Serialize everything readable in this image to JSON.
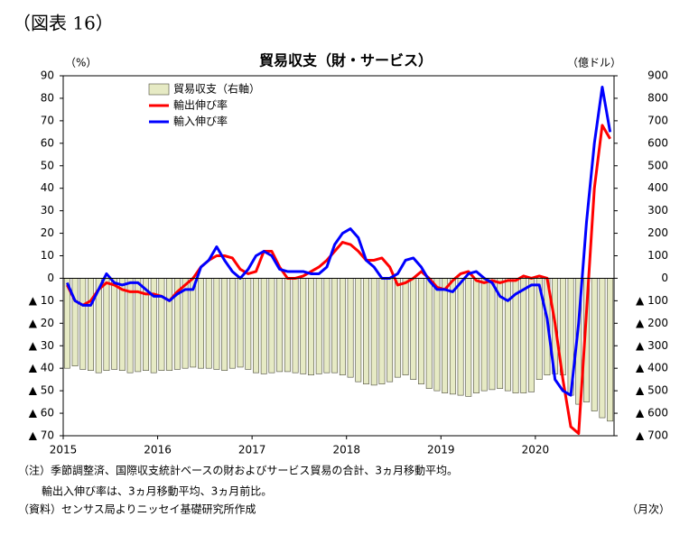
{
  "chart_data": {
    "type": "combo",
    "figure_label": "（図表 16）",
    "title": "貿易収支（財・サービス）",
    "y_unit": "（%）",
    "y2_unit": "（億ドル）",
    "x_unit": "（月次）",
    "notes": [
      "（注）季節調整済、国際収支統計ベースの財およびサービス貿易の合計、3ヵ月移動平均。",
      "輸出入伸び率は、3ヵ月移動平均、3ヵ月前比。",
      "（資料）センサス局よりニッセイ基礎研究所作成"
    ],
    "categories": [
      "2015",
      null,
      null,
      null,
      null,
      null,
      null,
      null,
      null,
      null,
      null,
      null,
      "2016",
      null,
      null,
      null,
      null,
      null,
      null,
      null,
      null,
      null,
      null,
      null,
      "2017",
      null,
      null,
      null,
      null,
      null,
      null,
      null,
      null,
      null,
      null,
      null,
      "2018",
      null,
      null,
      null,
      null,
      null,
      null,
      null,
      null,
      null,
      null,
      null,
      "2019",
      null,
      null,
      null,
      null,
      null,
      null,
      null,
      null,
      null,
      null,
      null,
      "2020",
      null,
      null,
      null,
      null,
      null,
      null,
      null,
      null,
      null
    ],
    "series": [
      {
        "name": "貿易収支（右軸）",
        "type": "bar",
        "axis": "y2",
        "color": "#e6eac4",
        "edge": "#4a4a3a",
        "values": [
          -400,
          -390,
          -405,
          -410,
          -420,
          -410,
          -405,
          -410,
          -420,
          -415,
          -410,
          -420,
          -410,
          -410,
          -405,
          -400,
          -395,
          -400,
          -400,
          -405,
          -410,
          -400,
          -395,
          -405,
          -420,
          -425,
          -420,
          -415,
          -415,
          -420,
          -425,
          -430,
          -425,
          -420,
          -420,
          -430,
          -440,
          -460,
          -470,
          -475,
          -470,
          -460,
          -440,
          -430,
          -450,
          -470,
          -490,
          -500,
          -510,
          -515,
          -520,
          -525,
          -510,
          -500,
          -495,
          -490,
          -500,
          -510,
          -510,
          -505,
          -450,
          -430,
          -425,
          -430,
          -520,
          -560,
          -550,
          -590,
          -620,
          -635
        ]
      },
      {
        "name": "輸出伸び率",
        "type": "line",
        "axis": "y",
        "color": "#ff0000",
        "values": [
          -3,
          -10,
          -12,
          -10,
          -5,
          -2,
          -3,
          -5,
          -6,
          -6,
          -7,
          -7,
          -8,
          -10,
          -6,
          -3,
          0,
          5,
          8,
          10,
          10,
          9,
          4,
          2,
          3,
          12,
          12,
          5,
          0,
          0,
          1,
          3,
          5,
          8,
          12,
          16,
          15,
          12,
          8,
          8,
          9,
          5,
          -3,
          -2,
          0,
          3,
          0,
          -4,
          -5,
          -1,
          2,
          3,
          -1,
          -2,
          -1,
          -2,
          -1,
          -1,
          1,
          0,
          1,
          0,
          -20,
          -45,
          -66,
          -69,
          -15,
          40,
          68,
          62
        ]
      },
      {
        "name": "輸入伸び率",
        "type": "line",
        "axis": "y",
        "color": "#0000ff",
        "values": [
          -2,
          -10,
          -12,
          -12,
          -5,
          2,
          -2,
          -3,
          -2,
          -2,
          -5,
          -8,
          -8,
          -10,
          -7,
          -5,
          -5,
          5,
          8,
          14,
          8,
          3,
          0,
          4,
          10,
          12,
          10,
          4,
          3,
          3,
          3,
          2,
          2,
          5,
          15,
          20,
          22,
          18,
          8,
          5,
          0,
          0,
          2,
          8,
          9,
          5,
          -1,
          -5,
          -5,
          -6,
          -2,
          2,
          3,
          0,
          -2,
          -8,
          -10,
          -7,
          -5,
          -3,
          -3,
          -18,
          -45,
          -50,
          -52,
          -20,
          25,
          60,
          85,
          65
        ]
      }
    ],
    "ylim": [
      -70,
      90
    ],
    "yticks": [
      90,
      80,
      70,
      60,
      50,
      40,
      30,
      20,
      10,
      0,
      {
        "value": -10,
        "label": "▲ 10"
      },
      {
        "value": -20,
        "label": "▲ 20"
      },
      {
        "value": -30,
        "label": "▲ 30"
      },
      {
        "value": -40,
        "label": "▲ 40"
      },
      {
        "value": -50,
        "label": "▲ 50"
      },
      {
        "value": -60,
        "label": "▲ 60"
      },
      {
        "value": -70,
        "label": "▲ 70"
      }
    ],
    "y2lim": [
      -700,
      900
    ],
    "y2ticks": [
      900,
      800,
      700,
      600,
      500,
      400,
      300,
      200,
      100,
      0,
      {
        "value": -100,
        "label": "▲ 100"
      },
      {
        "value": -200,
        "label": "▲ 200"
      },
      {
        "value": -300,
        "label": "▲ 300"
      },
      {
        "value": -400,
        "label": "▲ 400"
      },
      {
        "value": -500,
        "label": "▲ 500"
      },
      {
        "value": -600,
        "label": "▲ 600"
      },
      {
        "value": -700,
        "label": "▲ 700"
      }
    ],
    "grid": false
  }
}
